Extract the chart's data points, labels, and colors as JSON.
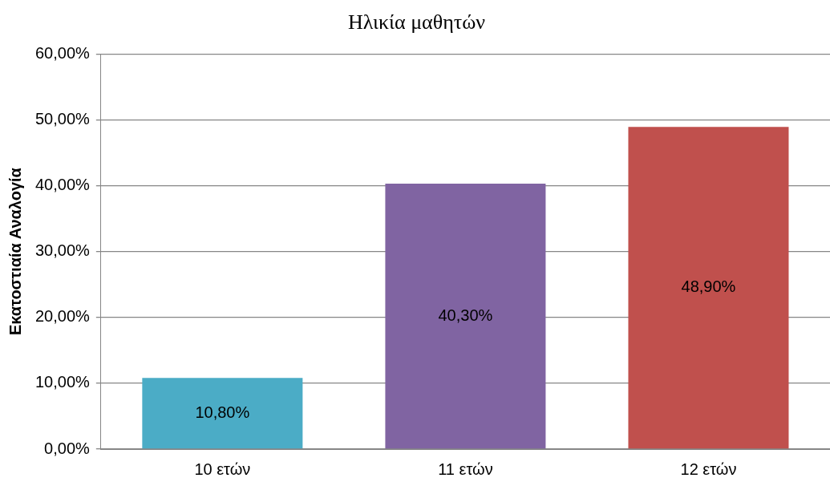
{
  "chart_data": {
    "type": "bar",
    "title": "Ηλικία μαθητών",
    "ylabel": "Εκατοστιαία Αναλογία",
    "categories": [
      "10 ετών",
      "11 ετών",
      "12 ετών"
    ],
    "values": [
      10.8,
      40.3,
      48.9
    ],
    "colors": [
      "#4bacc6",
      "#8064a2",
      "#c0504d"
    ],
    "value_labels": [
      "10,80%",
      "40,30%",
      "48,90%"
    ],
    "ylim": [
      0,
      60
    ],
    "yticks": [
      {
        "value": 0,
        "label": "0,00%"
      },
      {
        "value": 10,
        "label": "10,00%"
      },
      {
        "value": 20,
        "label": "20,00%"
      },
      {
        "value": 30,
        "label": "30,00%"
      },
      {
        "value": 40,
        "label": "40,00%"
      },
      {
        "value": 50,
        "label": "50,00%"
      },
      {
        "value": 60,
        "label": "60,00%"
      }
    ],
    "grid": "y",
    "legend": false
  }
}
